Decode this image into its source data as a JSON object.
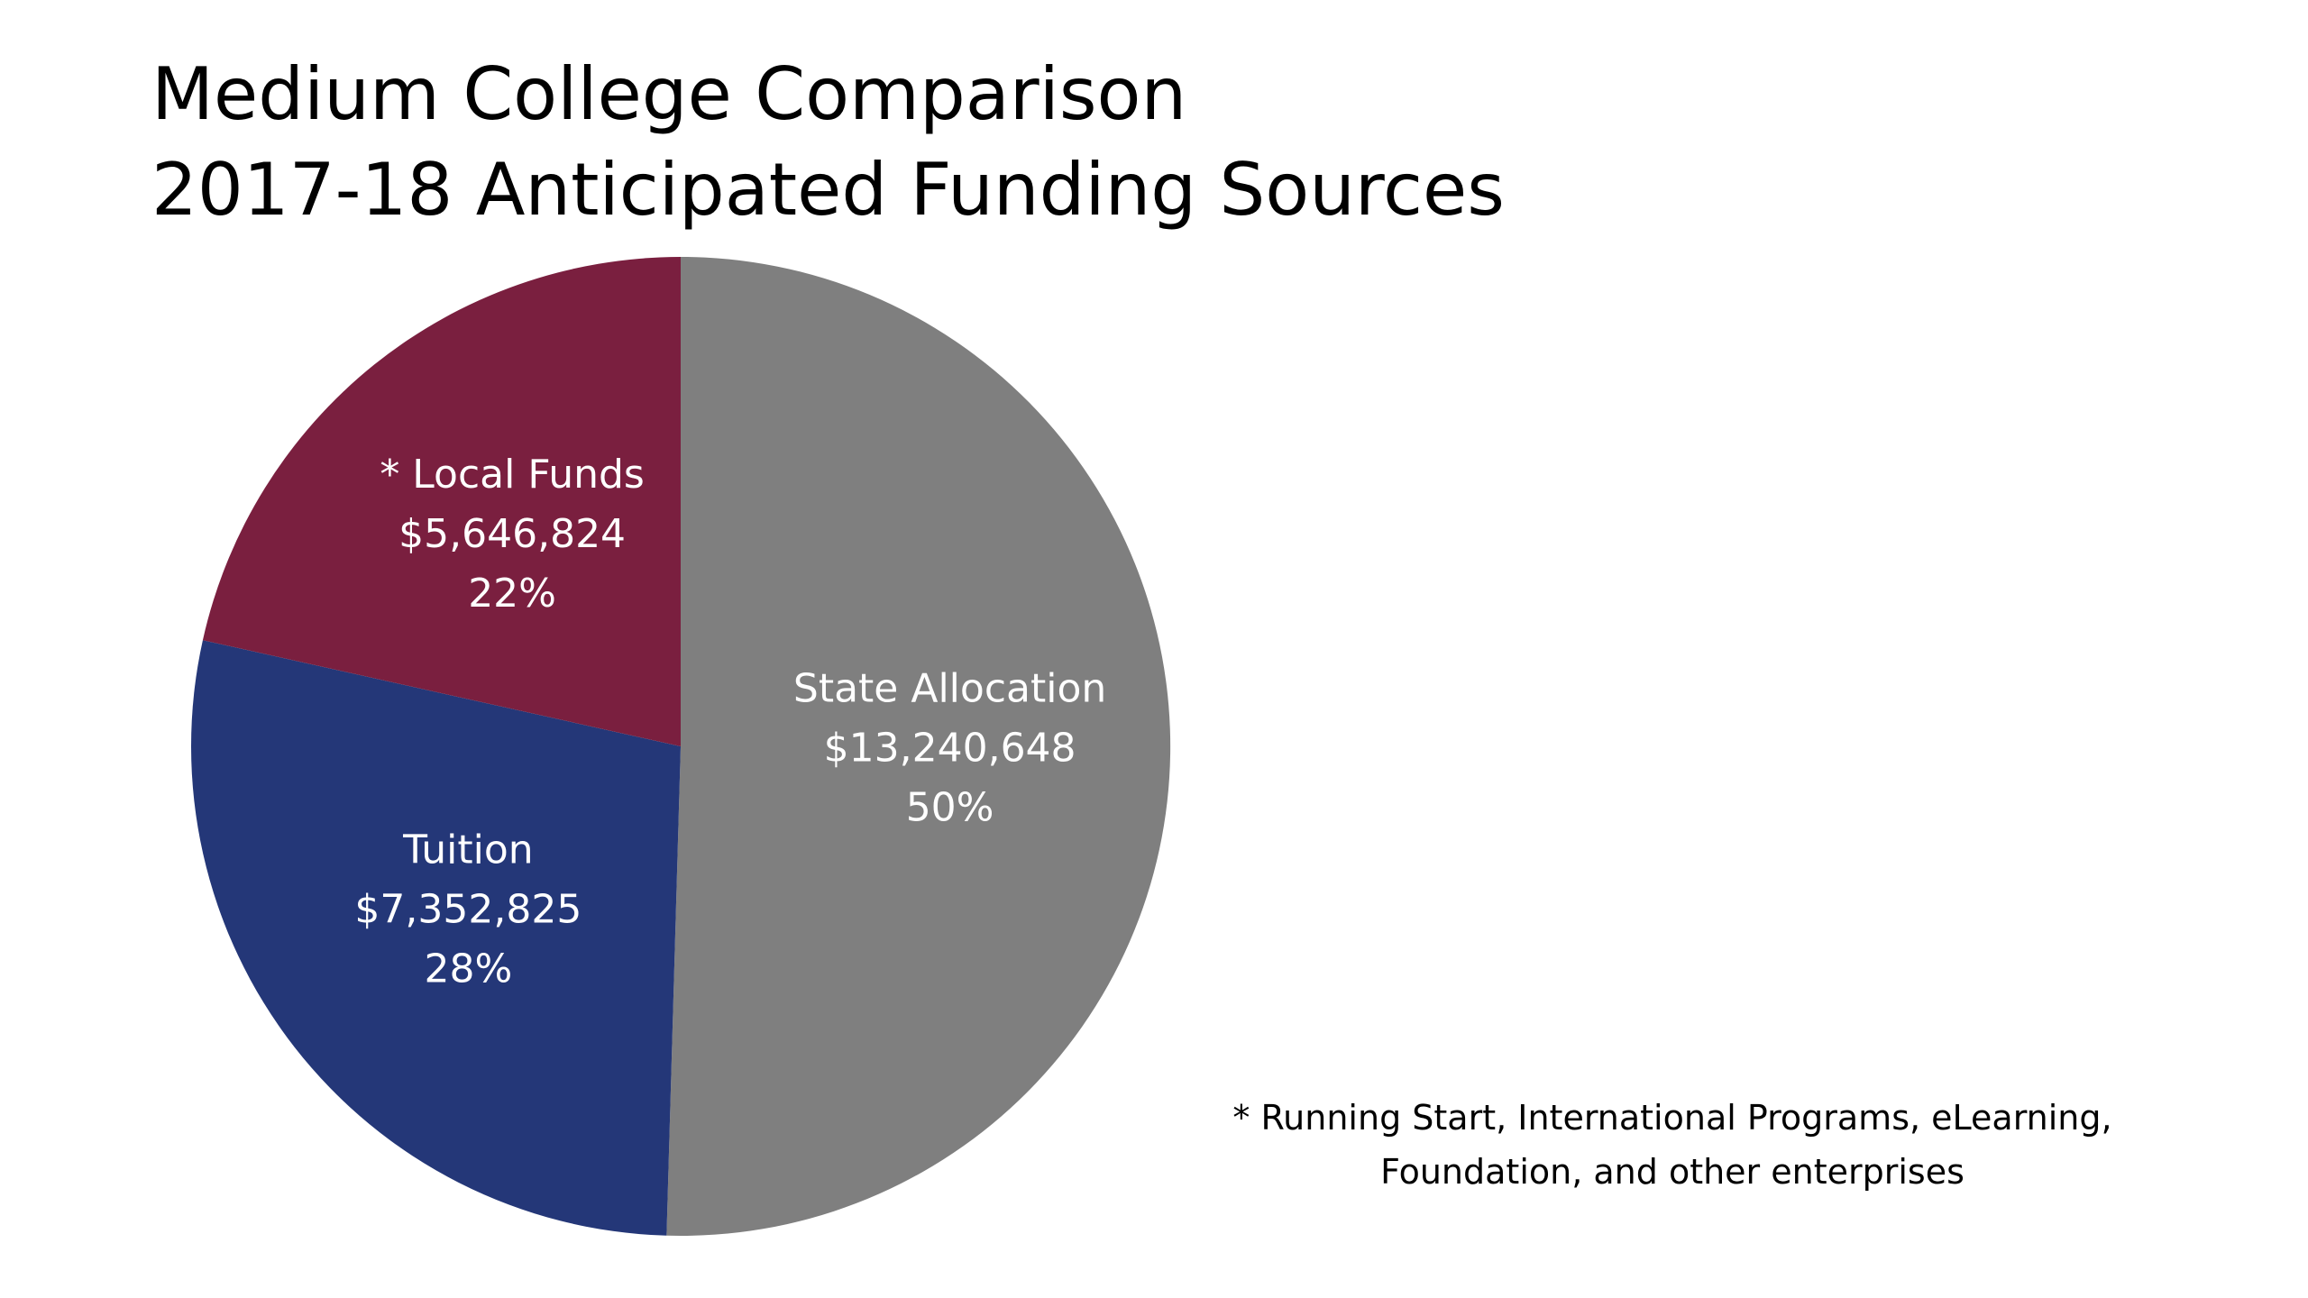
{
  "title": {
    "line1": "Medium College Comparison",
    "line2": "2017-18 Anticipated Funding Sources"
  },
  "chart_data": {
    "type": "pie",
    "title": "Medium College Comparison 2017-18 Anticipated Funding Sources",
    "start_angle_deg": 0,
    "direction": "clockwise",
    "slices": [
      {
        "label": "State Allocation",
        "value": 13240648,
        "value_text": "$13,240,648",
        "percent": 50,
        "percent_text": "50%",
        "color": "#7F7F7F"
      },
      {
        "label": "Tuition",
        "value": 7352825,
        "value_text": "$7,352,825",
        "percent": 28,
        "percent_text": "28%",
        "color": "#243778"
      },
      {
        "label": "* Local Funds",
        "value": 5646824,
        "value_text": "$5,646,824",
        "percent": 22,
        "percent_text": "22%",
        "color": "#7A1F3F"
      }
    ]
  },
  "footnote": {
    "line1": "* Running Start, International Programs, eLearning,",
    "line2": "Foundation, and other enterprises"
  }
}
